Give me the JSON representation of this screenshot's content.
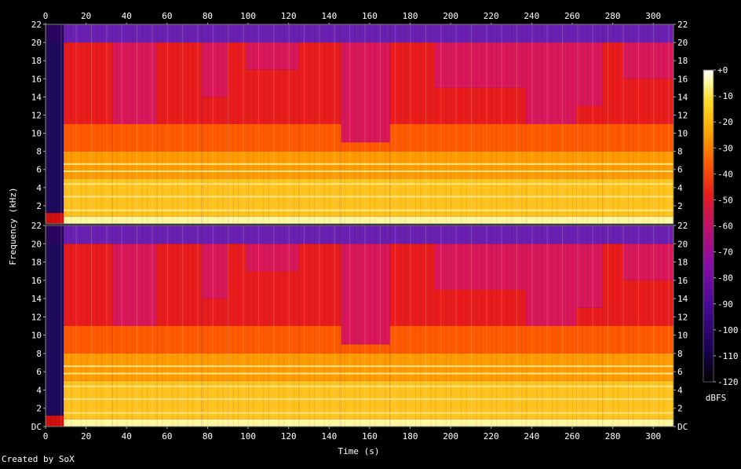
{
  "footer": {
    "credit": "Created by SoX"
  },
  "chart_data": {
    "type": "heatmap",
    "xlabel": "Time (s)",
    "ylabel": "Frequency (kHz)",
    "colorbar_label": "dBFS",
    "xlim": [
      0,
      310
    ],
    "ylim": [
      0,
      22
    ],
    "x_ticks": [
      "0",
      "20",
      "40",
      "60",
      "80",
      "100",
      "120",
      "140",
      "160",
      "180",
      "200",
      "220",
      "240",
      "260",
      "280",
      "300"
    ],
    "x_tick_values": [
      0,
      20,
      40,
      60,
      80,
      100,
      120,
      140,
      160,
      180,
      200,
      220,
      240,
      260,
      280,
      300
    ],
    "y_ticks": [
      "DC",
      "2",
      "4",
      "6",
      "8",
      "10",
      "12",
      "14",
      "16",
      "18",
      "20",
      "22"
    ],
    "y_tick_values": [
      0,
      2,
      4,
      6,
      8,
      10,
      12,
      14,
      16,
      18,
      20,
      22
    ],
    "colorbar_ticks": [
      "+0",
      "-10",
      "-20",
      "-30",
      "-40",
      "-50",
      "-60",
      "-70",
      "-80",
      "-90",
      "-100",
      "-110",
      "-120"
    ],
    "colorbar_range": [
      -120,
      0
    ],
    "channels": 2,
    "colors": {
      "scale": [
        "#000000",
        "#1a0050",
        "#4a0a9a",
        "#8a0ca8",
        "#c0106a",
        "#e81c1c",
        "#ff5a00",
        "#ffa500",
        "#ffdc28",
        "#fff8a0",
        "#ffffff"
      ]
    },
    "segments": [
      {
        "t0": 0,
        "t1": 9,
        "kind": "silence"
      },
      {
        "t0": 9,
        "t1": 33,
        "kind": "loud",
        "top_khz": 20
      },
      {
        "t0": 33,
        "t1": 55,
        "kind": "medium",
        "top_khz": 11
      },
      {
        "t0": 55,
        "t1": 77,
        "kind": "loud",
        "top_khz": 20
      },
      {
        "t0": 77,
        "t1": 90,
        "kind": "sparse",
        "top_khz": 14
      },
      {
        "t0": 90,
        "t1": 99,
        "kind": "loud",
        "top_khz": 20
      },
      {
        "t0": 99,
        "t1": 125,
        "kind": "medium",
        "top_khz": 17
      },
      {
        "t0": 125,
        "t1": 146,
        "kind": "loud",
        "top_khz": 20
      },
      {
        "t0": 146,
        "t1": 170,
        "kind": "medium",
        "top_khz": 9
      },
      {
        "t0": 170,
        "t1": 192,
        "kind": "loud",
        "top_khz": 20
      },
      {
        "t0": 192,
        "t1": 237,
        "kind": "medium",
        "top_khz": 15
      },
      {
        "t0": 237,
        "t1": 262,
        "kind": "medium",
        "top_khz": 11
      },
      {
        "t0": 262,
        "t1": 275,
        "kind": "sparse",
        "top_khz": 13
      },
      {
        "t0": 275,
        "t1": 285,
        "kind": "loud",
        "top_khz": 20
      },
      {
        "t0": 285,
        "t1": 310,
        "kind": "medium",
        "top_khz": 16
      }
    ]
  }
}
